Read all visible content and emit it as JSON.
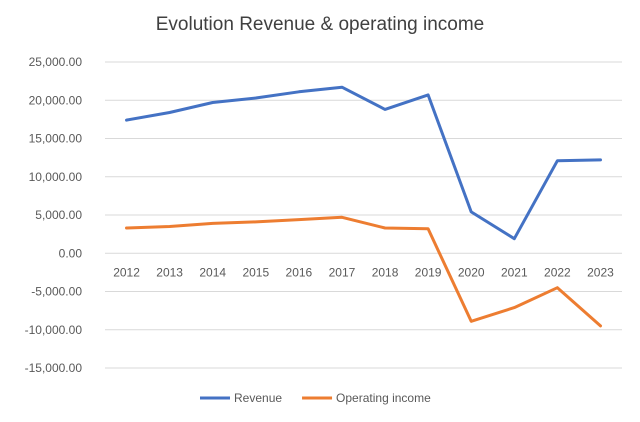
{
  "chart_data": {
    "type": "line",
    "title": "Evolution Revenue & operating income",
    "xlabel": "",
    "ylabel": "",
    "x": [
      "2012",
      "2013",
      "2014",
      "2015",
      "2016",
      "2017",
      "2018",
      "2019",
      "2020",
      "2021",
      "2022",
      "2023"
    ],
    "series": [
      {
        "name": "Revenue",
        "color": "#4472C4",
        "values": [
          17400,
          18400,
          19700,
          20300,
          21100,
          21700,
          18800,
          20700,
          5400,
          1900,
          12100,
          12200
        ]
      },
      {
        "name": "Operating income",
        "color": "#ED7D31",
        "values": [
          3300,
          3500,
          3900,
          4100,
          4400,
          4700,
          3300,
          3200,
          -8900,
          -7100,
          -4500,
          -9500
        ]
      }
    ],
    "ylim": [
      -15000,
      25000
    ],
    "yticks": [
      25000,
      20000,
      15000,
      10000,
      5000,
      0,
      -5000,
      -10000,
      -15000
    ],
    "ytick_labels": [
      "25,000.00",
      "20,000.00",
      "15,000.00",
      "10,000.00",
      "5,000.00",
      "0.00",
      "-5,000.00",
      "-10,000.00",
      "-15,000.00"
    ],
    "grid": true,
    "legend_position": "bottom"
  }
}
